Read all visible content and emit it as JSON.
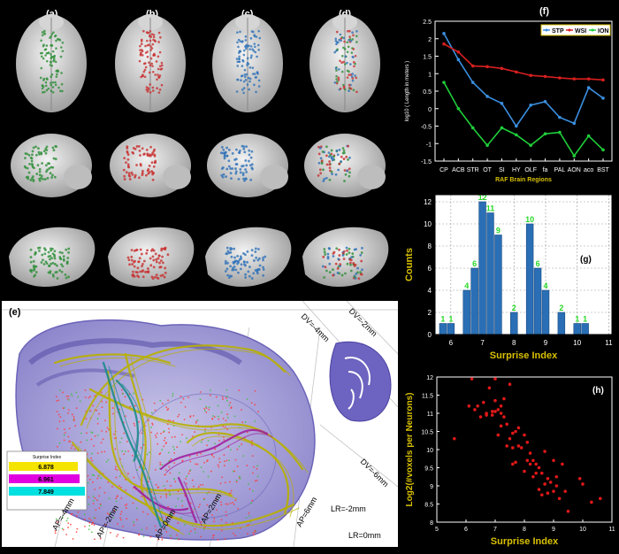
{
  "panel_labels": {
    "a": "(a)",
    "b": "(b)",
    "c": "(c)",
    "d": "(d)",
    "e": "(e)",
    "f": "(f)",
    "g": "(g)",
    "h": "(h)"
  },
  "colors": {
    "stp": "#3a8fe0",
    "wsi": "#d81f1f",
    "ion": "#1fcf3a",
    "bar": "#2a6fb5",
    "axis_gold": "#d8c000",
    "scatter": "#e01818",
    "green_brain": "#2f8f3a",
    "red_brain": "#c83030",
    "blue_brain": "#2f72b8"
  },
  "panel_e": {
    "dv_labels": [
      "DV=-4mm",
      "DV=-2mm",
      "DV=-6mm"
    ],
    "ap_labels": [
      "AP=-4mm",
      "AP=-2mm",
      "AP=0mm",
      "AP=2mm",
      "AP=6mm"
    ],
    "lr_labels": [
      "LR=-2mm",
      "LR=0mm"
    ],
    "inset_title": "Surprise Index",
    "inset_values": [
      "6.878",
      "6.961",
      "7.849"
    ],
    "inset_colors": [
      "#f5e300",
      "#e000e0",
      "#00e0e0"
    ]
  },
  "chart_data": [
    {
      "id": "f",
      "type": "line",
      "xlabel": "RAF Brain Regions",
      "ylabel": "log10 ( Length in meters )",
      "categories": [
        "CP",
        "ACB",
        "STR",
        "OT",
        "SI",
        "HY",
        "OLF",
        "fa",
        "PAL",
        "AON",
        "aco",
        "BST"
      ],
      "ylim": [
        -1.5,
        2.5
      ],
      "yticks": [
        "-1.5",
        "-1",
        "-0.5",
        "0",
        "0.5",
        "1",
        "1.5",
        "2",
        "2.5"
      ],
      "legend_position": "top-right",
      "series": [
        {
          "name": "STP",
          "color": "#3a8fe0",
          "values": [
            2.15,
            1.4,
            0.75,
            0.35,
            0.15,
            -0.5,
            0.1,
            0.2,
            -0.25,
            -0.42,
            0.6,
            0.3
          ]
        },
        {
          "name": "WSI",
          "color": "#d81f1f",
          "values": [
            1.85,
            1.62,
            1.22,
            1.2,
            1.15,
            1.05,
            0.95,
            0.92,
            0.88,
            0.85,
            0.85,
            0.82
          ]
        },
        {
          "name": "ION",
          "color": "#1fcf3a",
          "values": [
            0.75,
            0.0,
            -0.55,
            -1.05,
            -0.55,
            -0.75,
            -1.05,
            -0.72,
            -0.68,
            -1.35,
            -0.78,
            -1.18
          ]
        }
      ]
    },
    {
      "id": "g",
      "type": "bar",
      "xlabel": "Surprise Index",
      "ylabel": "Counts",
      "bin_centers": [
        5.75,
        6.0,
        6.25,
        6.5,
        6.75,
        7.0,
        7.25,
        7.5,
        7.75,
        8.0,
        8.25,
        8.5,
        8.75,
        9.0,
        9.25,
        9.5,
        9.75,
        10.0,
        10.25,
        10.5,
        10.75
      ],
      "values": [
        1,
        1,
        0,
        4,
        6,
        12,
        11,
        9,
        0,
        2,
        0,
        10,
        6,
        4,
        0,
        2,
        0,
        1,
        1,
        0,
        0
      ],
      "labels": [
        "1",
        "1",
        "",
        "4",
        "6",
        "12",
        "11",
        "9",
        "",
        "2",
        "",
        "10",
        "6",
        "4",
        "",
        "2",
        "",
        "1",
        "1",
        "",
        ""
      ],
      "xlim": [
        5.5,
        11.1
      ],
      "ylim": [
        0,
        12
      ],
      "xticks": [
        "6",
        "7",
        "8",
        "9",
        "10",
        "11"
      ],
      "yticks": [
        "0",
        "2",
        "4",
        "6",
        "8",
        "10",
        "12"
      ]
    },
    {
      "id": "h",
      "type": "scatter",
      "xlabel": "Surprise Index",
      "ylabel": "Log2(#voxels per Neurons)",
      "xlim": [
        5,
        11
      ],
      "ylim": [
        8,
        12
      ],
      "xticks": [
        "5",
        "6",
        "7",
        "8",
        "9",
        "10",
        "11"
      ],
      "yticks": [
        "8",
        "8.5",
        "9",
        "9.5",
        "10",
        "10.5",
        "11",
        "11.5",
        "12"
      ],
      "x": [
        5.6,
        6.1,
        6.2,
        6.3,
        6.4,
        6.5,
        6.6,
        6.7,
        6.8,
        6.9,
        7.0,
        7.0,
        7.1,
        7.1,
        7.2,
        7.2,
        7.3,
        7.3,
        7.4,
        7.4,
        7.5,
        7.5,
        7.6,
        7.6,
        7.7,
        7.7,
        7.8,
        7.8,
        7.9,
        8.0,
        8.0,
        8.1,
        8.1,
        8.2,
        8.2,
        8.3,
        8.3,
        8.4,
        8.4,
        8.5,
        8.5,
        8.6,
        8.6,
        8.7,
        8.7,
        8.8,
        8.8,
        8.9,
        9.0,
        9.0,
        9.1,
        9.1,
        9.2,
        9.3,
        9.4,
        9.5,
        9.9,
        10.0,
        10.3,
        10.6,
        6.9,
        7.0,
        7.2,
        6.7,
        7.6
      ],
      "y": [
        10.3,
        11.2,
        11.95,
        11.1,
        11.2,
        10.9,
        11.3,
        11.0,
        11.7,
        11.05,
        11.05,
        11.95,
        11.1,
        10.4,
        11.2,
        10.65,
        10.9,
        11.4,
        10.7,
        10.1,
        10.3,
        11.8,
        10.05,
        9.6,
        10.5,
        9.65,
        10.1,
        10.6,
        10.05,
        9.4,
        10.4,
        9.7,
        10.2,
        9.6,
        9.9,
        9.25,
        9.7,
        9.35,
        9.6,
        9.5,
        8.9,
        9.35,
        8.75,
        9.05,
        9.95,
        9.2,
        8.8,
        9.1,
        9.7,
        8.85,
        9.0,
        9.25,
        8.65,
        9.6,
        8.85,
        8.3,
        9.2,
        9.05,
        8.55,
        8.65,
        10.95,
        11.35,
        11.0,
        10.95,
        10.45
      ]
    }
  ]
}
